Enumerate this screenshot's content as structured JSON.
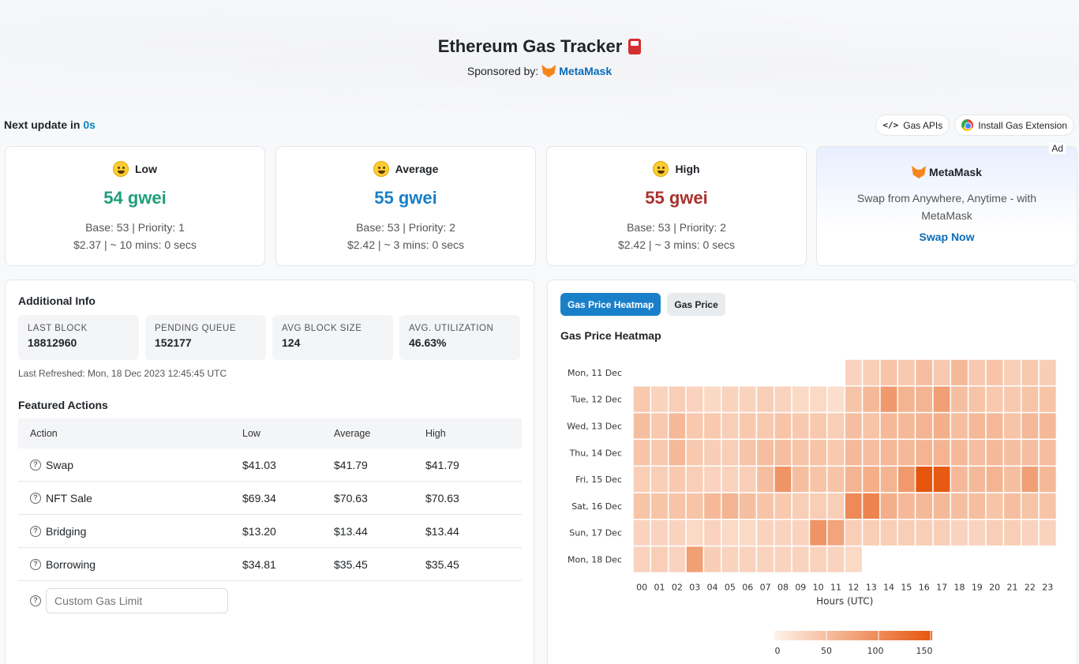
{
  "header": {
    "title": "Ethereum Gas Tracker",
    "sponsor_label": "Sponsored by:",
    "sponsor_name": "MetaMask"
  },
  "update": {
    "label": "Next update in",
    "value": "0s"
  },
  "links": {
    "gas_apis": "Gas APIs",
    "install_extension": "Install Gas Extension"
  },
  "tiers": [
    {
      "name": "Low",
      "price": "54 gwei",
      "base_priority": "Base: 53 | Priority: 1",
      "cost_time": "$2.37 | ~ 10 mins: 0 secs",
      "color": "#1f9e7a"
    },
    {
      "name": "Average",
      "price": "55 gwei",
      "base_priority": "Base: 53 | Priority: 2",
      "cost_time": "$2.42 | ~ 3 mins: 0 secs",
      "color": "#1a7fc9"
    },
    {
      "name": "High",
      "price": "55 gwei",
      "base_priority": "Base: 53 | Priority: 2",
      "cost_time": "$2.42 | ~ 3 mins: 0 secs",
      "color": "#a8322d"
    }
  ],
  "ad": {
    "badge": "Ad",
    "title": "MetaMask",
    "text": "Swap from Anywhere, Anytime - with MetaMask",
    "cta": "Swap Now"
  },
  "additional": {
    "title": "Additional Info",
    "stats": [
      {
        "label": "LAST BLOCK",
        "value": "18812960"
      },
      {
        "label": "PENDING QUEUE",
        "value": "152177"
      },
      {
        "label": "AVG BLOCK SIZE",
        "value": "124"
      },
      {
        "label": "AVG. UTILIZATION",
        "value": "46.63%"
      }
    ],
    "refreshed": "Last Refreshed: Mon, 18 Dec 2023 12:45:45 UTC"
  },
  "featured": {
    "title": "Featured Actions",
    "headers": [
      "Action",
      "Low",
      "Average",
      "High"
    ],
    "rows": [
      {
        "action": "Swap",
        "low": "$41.03",
        "avg": "$41.79",
        "high": "$41.79"
      },
      {
        "action": "NFT Sale",
        "low": "$69.34",
        "avg": "$70.63",
        "high": "$70.63"
      },
      {
        "action": "Bridging",
        "low": "$13.20",
        "avg": "$13.44",
        "high": "$13.44"
      },
      {
        "action": "Borrowing",
        "low": "$34.81",
        "avg": "$35.45",
        "high": "$35.45"
      }
    ],
    "custom_placeholder": "Custom Gas Limit"
  },
  "chart_tabs": {
    "active": "Gas Price Heatmap",
    "inactive": "Gas Price"
  },
  "chart_data": {
    "type": "heatmap",
    "title": "Gas Price Heatmap",
    "xlabel": "Hours (UTC)",
    "x": [
      "00",
      "01",
      "02",
      "03",
      "04",
      "05",
      "06",
      "07",
      "08",
      "09",
      "10",
      "11",
      "12",
      "13",
      "14",
      "15",
      "16",
      "17",
      "18",
      "19",
      "20",
      "21",
      "22",
      "23"
    ],
    "y": [
      "Mon, 11 Dec",
      "Tue, 12 Dec",
      "Wed, 13 Dec",
      "Thu, 14 Dec",
      "Fri, 15 Dec",
      "Sat, 16 Dec",
      "Sun, 17 Dec",
      "Mon, 18 Dec"
    ],
    "values": [
      [
        null,
        null,
        null,
        null,
        null,
        null,
        null,
        null,
        null,
        null,
        null,
        null,
        30,
        35,
        45,
        40,
        50,
        40,
        55,
        40,
        45,
        35,
        40,
        35
      ],
      [
        40,
        30,
        35,
        30,
        25,
        30,
        30,
        35,
        30,
        25,
        25,
        20,
        45,
        55,
        85,
        60,
        60,
        80,
        50,
        45,
        40,
        40,
        45,
        45
      ],
      [
        50,
        40,
        55,
        40,
        40,
        35,
        40,
        40,
        45,
        40,
        40,
        35,
        50,
        45,
        55,
        55,
        60,
        65,
        50,
        55,
        55,
        45,
        55,
        55
      ],
      [
        45,
        40,
        55,
        40,
        35,
        35,
        45,
        50,
        50,
        45,
        45,
        40,
        55,
        50,
        55,
        55,
        60,
        60,
        55,
        50,
        55,
        50,
        50,
        50
      ],
      [
        35,
        35,
        40,
        35,
        30,
        30,
        35,
        50,
        90,
        50,
        45,
        45,
        60,
        65,
        60,
        85,
        150,
        145,
        55,
        55,
        60,
        50,
        80,
        55
      ],
      [
        45,
        45,
        45,
        45,
        55,
        60,
        50,
        45,
        40,
        35,
        35,
        35,
        100,
        105,
        65,
        55,
        55,
        55,
        50,
        50,
        45,
        50,
        45,
        45
      ],
      [
        30,
        30,
        30,
        25,
        30,
        25,
        25,
        30,
        30,
        30,
        90,
        75,
        35,
        35,
        35,
        35,
        35,
        35,
        30,
        30,
        35,
        35,
        30,
        30
      ],
      [
        30,
        35,
        30,
        80,
        35,
        30,
        30,
        30,
        30,
        30,
        30,
        30,
        25,
        null,
        null,
        null,
        null,
        null,
        null,
        null,
        null,
        null,
        null,
        null
      ]
    ],
    "colorbar_ticks": [
      "0",
      "50",
      "100",
      "150"
    ],
    "color_range": [
      0,
      150
    ],
    "color_low": "#fef3ea",
    "color_high": "#e6550d"
  }
}
